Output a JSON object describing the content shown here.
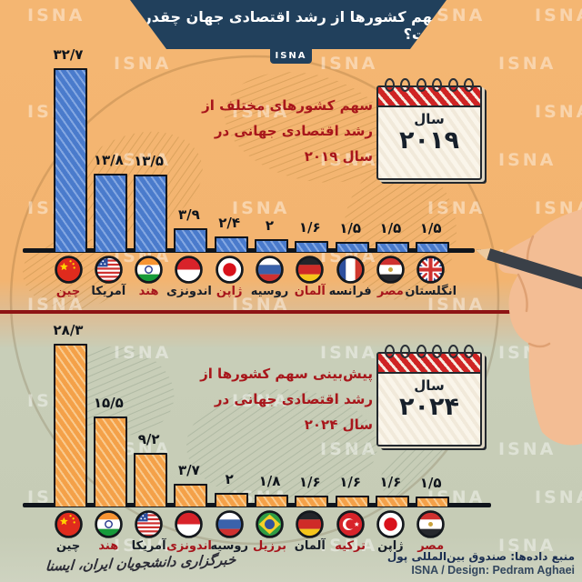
{
  "header": {
    "title": "سهم کشورها از رشد اقتصادی جهان چقدر است؟",
    "brand": "ISNA"
  },
  "watermark_text": "ISNA",
  "colors": {
    "accent_navy": "#21405c",
    "annotation_red": "#a8161b",
    "bar_blue": "#4a7bcc",
    "bar_orange": "#f6a64c",
    "separator_red": "#8e1414",
    "label_red": "#a6151c",
    "label_dark": "#171e28"
  },
  "chart_data": [
    {
      "type": "bar",
      "year_latin": "2019",
      "title_lines": [
        "سهم کشورهای مختلف از",
        "رشد اقتصادی جهانی در",
        "سال ۲۰۱۹"
      ],
      "calendar": {
        "label": "سال",
        "year": "۲۰۱۹"
      },
      "categories": [
        "چین",
        "آمریکا",
        "هند",
        "اندونزی",
        "ژاپن",
        "روسیه",
        "آلمان",
        "فرانسه",
        "مصر",
        "انگلستان"
      ],
      "values": [
        32.7,
        13.8,
        13.5,
        3.9,
        2.4,
        2,
        1.6,
        1.5,
        1.5,
        1.5
      ],
      "value_labels": [
        "۳۲/۷",
        "۱۳/۸",
        "۱۳/۵",
        "۳/۹",
        "۲/۴",
        "۲",
        "۱/۶",
        "۱/۵",
        "۱/۵",
        "۱/۵"
      ],
      "flags": [
        "china",
        "usa",
        "india",
        "indonesia",
        "japan",
        "russia",
        "germany",
        "france",
        "egypt",
        "uk"
      ],
      "label_styles": [
        "red",
        "dark",
        "red",
        "dark",
        "red",
        "dark",
        "red",
        "dark",
        "red",
        "dark"
      ],
      "bar_color": "#4a7bcc",
      "ylim": [
        0,
        35
      ],
      "legend_position": "none",
      "grid": false
    },
    {
      "type": "bar",
      "year_latin": "2024",
      "title_lines": [
        "پیش‌بینی سهم کشورها از",
        "رشد اقتصادی جهانی در",
        "سال ۲۰۲۴"
      ],
      "calendar": {
        "label": "سال",
        "year": "۲۰۲۴"
      },
      "categories": [
        "چین",
        "هند",
        "آمریکا",
        "اندونزی",
        "روسیه",
        "برزیل",
        "آلمان",
        "ترکیه",
        "ژاپن",
        "مصر"
      ],
      "values": [
        28.3,
        15.5,
        9.2,
        3.7,
        2,
        1.8,
        1.6,
        1.6,
        1.6,
        1.5
      ],
      "value_labels": [
        "۲۸/۳",
        "۱۵/۵",
        "۹/۲",
        "۳/۷",
        "۲",
        "۱/۸",
        "۱/۶",
        "۱/۶",
        "۱/۶",
        "۱/۵"
      ],
      "flags": [
        "china",
        "india",
        "usa",
        "indonesia",
        "russia",
        "brazil",
        "germany",
        "turkey",
        "japan",
        "egypt"
      ],
      "label_styles": [
        "dark",
        "red",
        "dark",
        "red",
        "dark",
        "red",
        "dark",
        "red",
        "dark",
        "red"
      ],
      "bar_color": "#f6a64c",
      "ylim": [
        0,
        35
      ],
      "legend_position": "none",
      "grid": false
    }
  ],
  "footer": {
    "source": "منبع داده‌ها: صندوق بین‌المللی پول",
    "credit": "ISNA / Design: Pedram Aghaei",
    "slogan": "خبرگزاری دانشجویان ایران، ایسنا"
  }
}
